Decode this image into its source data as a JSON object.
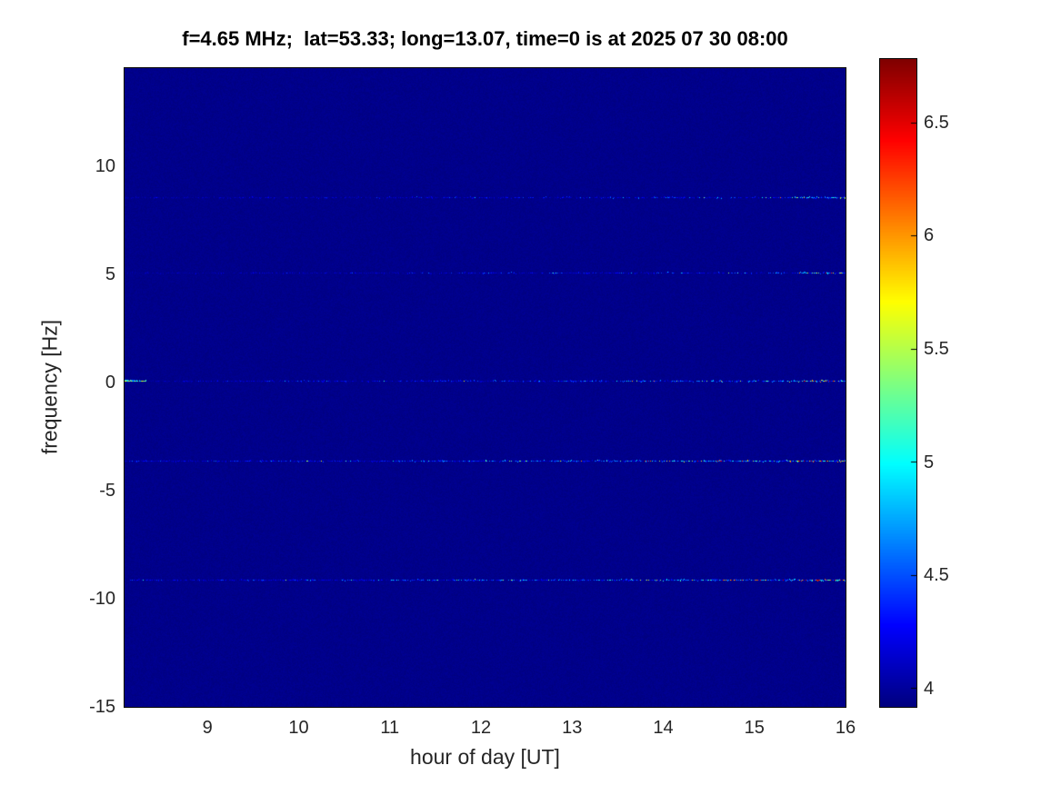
{
  "figure": {
    "title": "f=4.65 MHz;  lat=53.33; long=13.07, time=0 is at 2025 07 30 08:00",
    "xlabel": "hour of day [UT]",
    "ylabel": "frequency [Hz]"
  },
  "chart_data": {
    "type": "heatmap",
    "title": "f=4.65 MHz;  lat=53.33; long=13.07, time=0 is at 2025 07 30 08:00",
    "xlabel": "hour of day [UT]",
    "ylabel": "frequency [Hz]",
    "xlim": [
      8.09,
      16
    ],
    "ylim": [
      -15,
      14.55
    ],
    "xticks": [
      9,
      10,
      11,
      12,
      13,
      14,
      15,
      16
    ],
    "yticks": [
      10,
      5,
      0,
      -5,
      -10,
      -15
    ],
    "colormap": "jet",
    "clim": [
      3.92,
      6.78
    ],
    "background_value": 3.95,
    "colorbar_ticks": [
      6.5,
      6,
      5.5,
      5,
      4.5,
      4
    ],
    "streaks": [
      {
        "frequency_hz": 8.6,
        "intensity": "weak",
        "left_hot": false
      },
      {
        "frequency_hz": 5.1,
        "intensity": "weak",
        "left_hot": false
      },
      {
        "frequency_hz": 0.1,
        "intensity": "medium",
        "left_hot": true
      },
      {
        "frequency_hz": -3.6,
        "intensity": "strong",
        "left_hot": false
      },
      {
        "frequency_hz": -9.1,
        "intensity": "strong",
        "left_hot": false
      }
    ],
    "notes": "Uniform dark-blue spectrogram background with five horizontal speckled spectral lines; speckle brightness and density increase toward 15-16 UT, with dense bright clusters at the right edge"
  }
}
